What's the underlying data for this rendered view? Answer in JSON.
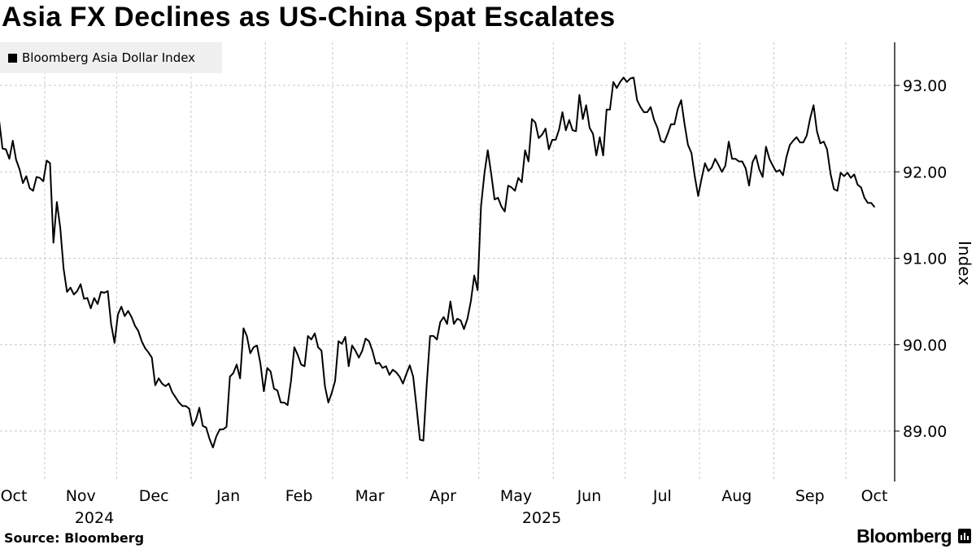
{
  "chart_data": {
    "type": "line",
    "title": "Asia FX Declines as US-China Spat Escalates",
    "legend": [
      "Bloomberg Asia Dollar Index"
    ],
    "legend_placement": "top-left",
    "xlabel": "",
    "ylabel": "Index",
    "ylim": [
      88.4,
      93.5
    ],
    "yticks": [
      89,
      90,
      91,
      92,
      93
    ],
    "ytick_labels": [
      "89.00",
      "90.00",
      "91.00",
      "92.00",
      "93.00"
    ],
    "grid": true,
    "x_start": "2024-10-13",
    "x_end": "2025-10-13",
    "month_labels": [
      "Oct",
      "Nov",
      "Dec",
      "Jan",
      "Feb",
      "Mar",
      "Apr",
      "May",
      "Jun",
      "Jul",
      "Aug",
      "Sep",
      "Oct"
    ],
    "year_labels": [
      "2024",
      "2025"
    ],
    "series": [
      {
        "name": "Bloomberg Asia Dollar Index",
        "color": "#000000",
        "values": [
          92.59,
          92.27,
          92.26,
          92.15,
          92.36,
          92.14,
          92.03,
          91.87,
          91.95,
          91.81,
          91.78,
          91.94,
          91.93,
          91.89,
          92.13,
          92.1,
          91.18,
          91.65,
          91.35,
          90.88,
          90.61,
          90.66,
          90.58,
          90.62,
          90.7,
          90.53,
          90.54,
          90.42,
          90.54,
          90.47,
          90.61,
          90.6,
          90.62,
          90.24,
          90.02,
          90.35,
          90.44,
          90.33,
          90.39,
          90.32,
          90.22,
          90.16,
          90.04,
          89.96,
          89.91,
          89.85,
          89.53,
          89.61,
          89.55,
          89.52,
          89.55,
          89.45,
          89.39,
          89.33,
          89.29,
          89.29,
          89.26,
          89.06,
          89.13,
          89.27,
          89.06,
          89.04,
          88.91,
          88.81,
          88.94,
          89.02,
          89.02,
          89.05,
          89.63,
          89.67,
          89.77,
          89.61,
          90.19,
          90.1,
          89.9,
          89.97,
          89.99,
          89.78,
          89.46,
          89.73,
          89.69,
          89.49,
          89.47,
          89.33,
          89.33,
          89.3,
          89.58,
          89.97,
          89.88,
          89.77,
          89.75,
          90.1,
          90.06,
          90.13,
          89.97,
          89.93,
          89.52,
          89.33,
          89.44,
          89.58,
          90.04,
          90.01,
          90.09,
          89.75,
          89.99,
          89.93,
          89.85,
          89.93,
          90.07,
          90.04,
          89.93,
          89.78,
          89.79,
          89.73,
          89.75,
          89.65,
          89.71,
          89.68,
          89.63,
          89.55,
          89.66,
          89.76,
          89.63,
          89.28,
          88.9,
          88.89,
          89.53,
          90.1,
          90.1,
          90.06,
          90.26,
          90.32,
          90.24,
          90.5,
          90.24,
          90.3,
          90.28,
          90.18,
          90.3,
          90.5,
          90.8,
          90.63,
          91.6,
          91.98,
          92.25,
          91.98,
          91.68,
          91.7,
          91.6,
          91.54,
          91.84,
          91.82,
          91.78,
          91.93,
          91.88,
          92.25,
          92.12,
          92.61,
          92.57,
          92.39,
          92.43,
          92.5,
          92.26,
          92.37,
          92.37,
          92.49,
          92.69,
          92.48,
          92.6,
          92.48,
          92.47,
          92.89,
          92.61,
          92.77,
          92.51,
          92.44,
          92.19,
          92.4,
          92.19,
          92.72,
          92.72,
          93.04,
          92.97,
          93.04,
          93.09,
          93.04,
          93.08,
          93.09,
          92.83,
          92.75,
          92.69,
          92.69,
          92.75,
          92.6,
          92.51,
          92.36,
          92.34,
          92.44,
          92.55,
          92.55,
          92.73,
          92.83,
          92.55,
          92.31,
          92.22,
          91.95,
          91.72,
          91.92,
          92.1,
          92.01,
          92.05,
          92.15,
          92.08,
          92.0,
          92.07,
          92.35,
          92.15,
          92.15,
          92.12,
          92.12,
          92.04,
          91.84,
          92.11,
          92.19,
          92.03,
          91.94,
          92.29,
          92.15,
          92.07,
          92.0,
          92.02,
          91.96,
          92.17,
          92.31,
          92.36,
          92.4,
          92.34,
          92.34,
          92.42,
          92.62,
          92.77,
          92.47,
          92.33,
          92.35,
          92.26,
          91.98,
          91.8,
          91.78,
          91.99,
          91.95,
          91.99,
          91.93,
          91.97,
          91.85,
          91.82,
          91.7,
          91.64,
          91.64,
          91.59
        ]
      }
    ]
  },
  "footer": {
    "source": "Source: Bloomberg",
    "brand": "Bloomberg"
  }
}
